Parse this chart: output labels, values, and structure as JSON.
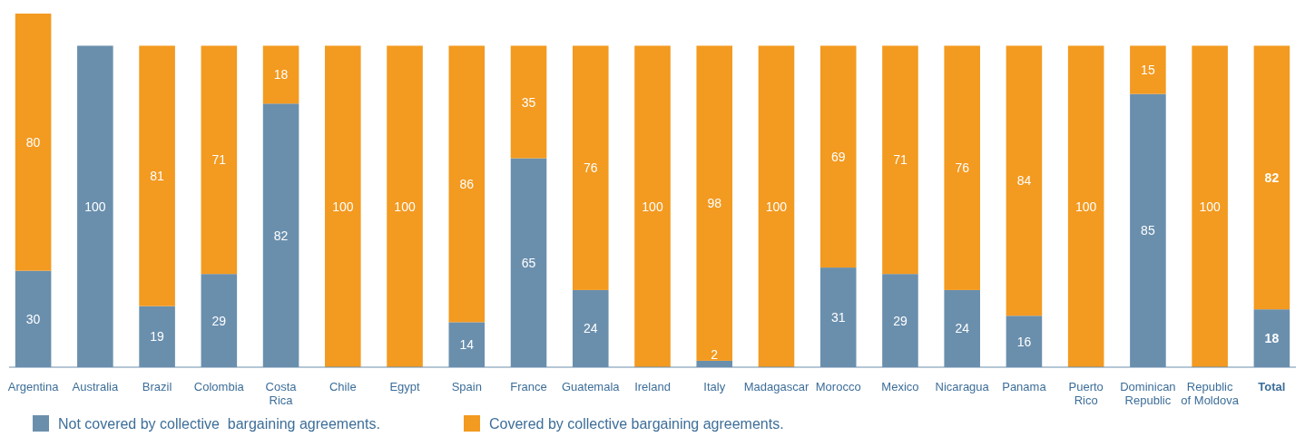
{
  "chart_data": {
    "type": "bar",
    "stacked": true,
    "data_labels": true,
    "legend": "bottom left",
    "categories": [
      "Argentina",
      "Australia",
      "Brazil",
      "Colombia",
      "Costa Rica",
      "Chile",
      "Egypt",
      "Spain",
      "France",
      "Guatemala",
      "Ireland",
      "Italy",
      "Madagascar",
      "Morocco",
      "Mexico",
      "Nicaragua",
      "Panama",
      "Puerto Rico",
      "Dominican Republic",
      "Republic of Moldova",
      "Total"
    ],
    "series": [
      {
        "name": "Not covered by collective  bargaining agreements.",
        "color": "#6a8fad",
        "values": [
          30,
          100,
          19,
          29,
          82,
          null,
          null,
          14,
          65,
          24,
          null,
          2,
          null,
          31,
          29,
          24,
          16,
          null,
          85,
          null,
          18
        ]
      },
      {
        "name": "Covered by collective bargaining agreements.",
        "color": "#f39a20",
        "values": [
          80,
          null,
          81,
          71,
          18,
          100,
          100,
          86,
          35,
          76,
          100,
          98,
          100,
          69,
          71,
          76,
          84,
          100,
          15,
          100,
          82
        ]
      }
    ]
  }
}
